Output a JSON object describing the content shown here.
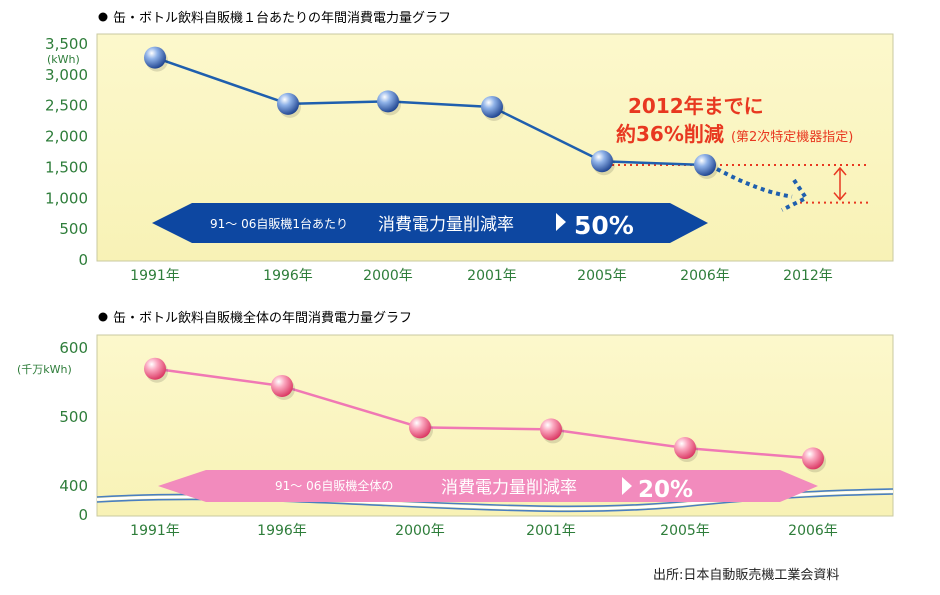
{
  "chart_data": [
    {
      "type": "line",
      "title": "缶・ボトル飲料自販機１台あたりの年間消費電力量グラフ",
      "ylabel": "(kWh)",
      "categories": [
        "1991年",
        "1996年",
        "2000年",
        "2001年",
        "2005年",
        "2006年",
        "2012年"
      ],
      "yticks": [
        "3,500",
        "3,000",
        "2,500",
        "2,000",
        "1,500",
        "1,000",
        "500",
        "0"
      ],
      "ylim": [
        0,
        3500
      ],
      "series": [
        {
          "values": [
            3280,
            2530,
            2570,
            2480,
            1600,
            1540,
            null
          ],
          "color": "#1f5fae"
        }
      ],
      "projection": {
        "from_index": 5,
        "to_index": 6,
        "target_value": 930
      },
      "target_line_value": 930,
      "current_line_value": 1540,
      "annotation": {
        "line1": "2012年までに",
        "line2": "約36%削減",
        "note": "(第2次特定機器指定)"
      },
      "banner": {
        "prefix": "91～ 06自販機1台あたり",
        "label": "消費電力量削減率",
        "value": "50%"
      },
      "colors": {
        "plot_bg": "#fbf7c8",
        "line": "#1f5fae",
        "banner": "#0d47a1",
        "annotation": "#e83820",
        "tick": "#2e7d3a"
      }
    },
    {
      "type": "line",
      "title": "缶・ボトル飲料自販機全体の年間消費電力量グラフ",
      "ylabel": "(千万kWh)",
      "categories": [
        "1991年",
        "1996年",
        "2000年",
        "2001年",
        "2005年",
        "2006年"
      ],
      "yticks": [
        "600",
        "500",
        "400",
        "0"
      ],
      "ylim": [
        400,
        600
      ],
      "axis_break": true,
      "series": [
        {
          "values": [
            570,
            545,
            485,
            482,
            455,
            440
          ],
          "color": "#f078b4"
        }
      ],
      "banner": {
        "prefix": "91～ 06自販機全体の",
        "label": "消費電力量削減率",
        "value": "20%"
      },
      "colors": {
        "plot_bg": "#fbf7c8",
        "line": "#f078b4",
        "banner": "#f28bbd",
        "tick": "#2e7d3a"
      }
    }
  ],
  "source": "出所:日本自動販売機工業会資料"
}
